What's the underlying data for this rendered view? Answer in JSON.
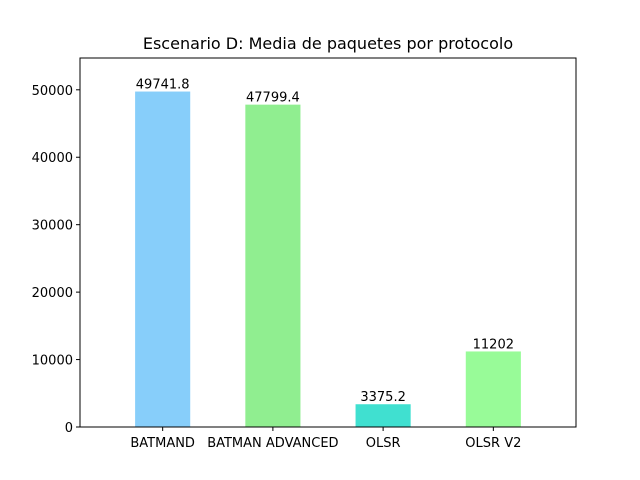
{
  "chart_data": {
    "type": "bar",
    "title": "Escenario D: Media de paquetes por protocolo",
    "xlabel": "",
    "ylabel": "",
    "categories": [
      "BATMAND",
      "BATMAN ADVANCED",
      "OLSR",
      "OLSR V2"
    ],
    "values": [
      49741.8,
      47799.4,
      3375.2,
      11202
    ],
    "value_labels": [
      "49741.8",
      "47799.4",
      "3375.2",
      "11202"
    ],
    "colors": [
      "#87cefa",
      "#90ee90",
      "#40e0d0",
      "#98fb98"
    ],
    "ylim": [
      0,
      54716
    ],
    "yticks": [
      0,
      10000,
      20000,
      30000,
      40000,
      50000
    ],
    "grid": false,
    "legend": "none"
  }
}
